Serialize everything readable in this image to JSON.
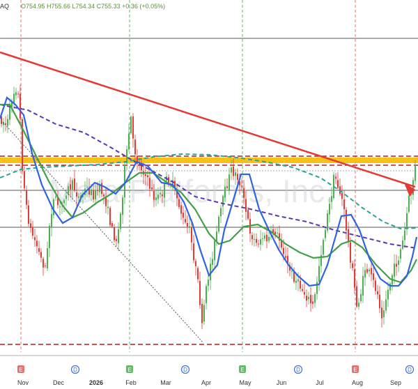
{
  "header": {
    "symbol_fragment": "AQ",
    "ohlc_text": "O754.95 H755.66 L754.34 C755.33 +0.36 (+0.05%)"
  },
  "watermark": "Meta Platforms, Inc.",
  "colors": {
    "up_candle": "#4caf50",
    "down_candle": "#e53935",
    "trendline": "#e53935",
    "resistance_band": "#f6c21a",
    "ma_blue": "#2f64e0",
    "ma_green": "#43a047",
    "ma_purple_dashed": "#5e35b1",
    "ma_teal_dashed": "#26a69a"
  },
  "chart_data": {
    "type": "candlestick",
    "x_ticks": [
      "Nov",
      "Dec",
      "2026",
      "Feb",
      "Mar",
      "Apr",
      "May",
      "Jun",
      "Jul",
      "Aug",
      "Sep"
    ],
    "bold_ticks": [
      "2026"
    ],
    "event_markers": [
      {
        "label": "E",
        "month": "Nov",
        "type": "earnings"
      },
      {
        "label": "D",
        "month": "Dec",
        "type": "dividend"
      },
      {
        "label": "E",
        "month": "Feb",
        "type": "earnings"
      },
      {
        "label": "D",
        "month": "Mar",
        "type": "dividend"
      },
      {
        "label": "E",
        "month": "May",
        "type": "earnings"
      },
      {
        "label": "D",
        "month": "Jun",
        "type": "dividend"
      },
      {
        "label": "E",
        "month": "Aug",
        "type": "earnings"
      },
      {
        "label": "D",
        "month": "Sep",
        "type": "dividend"
      }
    ],
    "last_close": 755.33,
    "grid": false
  }
}
